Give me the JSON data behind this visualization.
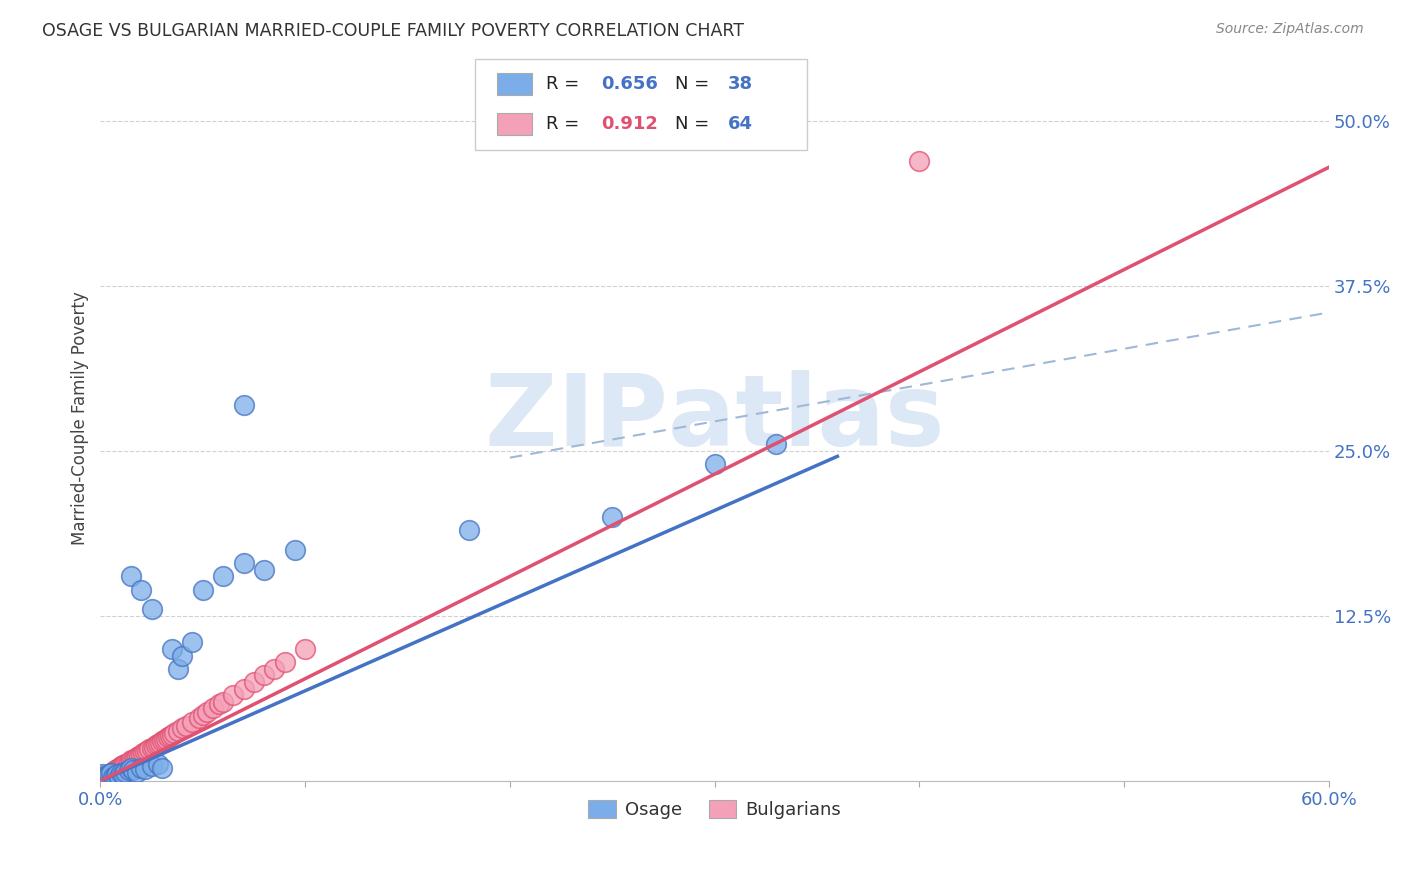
{
  "title": "OSAGE VS BULGARIAN MARRIED-COUPLE FAMILY POVERTY CORRELATION CHART",
  "source": "Source: ZipAtlas.com",
  "ylabel": "Married-Couple Family Poverty",
  "xlim": [
    0.0,
    0.6
  ],
  "ylim": [
    0.0,
    0.55
  ],
  "x_ticks": [
    0.0,
    0.6
  ],
  "x_tick_labels": [
    "0.0%",
    "60.0%"
  ],
  "y_ticks": [
    0.0,
    0.125,
    0.25,
    0.375,
    0.5
  ],
  "y_tick_labels": [
    "",
    "12.5%",
    "25.0%",
    "37.5%",
    "50.0%"
  ],
  "osage_color": "#7baee8",
  "bulgarian_color": "#f4a0b8",
  "osage_line_color": "#4472c4",
  "bulgarian_line_color": "#e05070",
  "dashed_line_color": "#a0b8d8",
  "background_color": "#ffffff",
  "grid_color": "#cccccc",
  "watermark_color": "#dce8f5",
  "tick_label_color": "#4472c4",
  "source_color": "#888888",
  "title_color": "#333333",
  "axis_label_color": "#444444",
  "osage_x": [
    0.001,
    0.002,
    0.003,
    0.004,
    0.005,
    0.006,
    0.007,
    0.008,
    0.009,
    0.01,
    0.011,
    0.012,
    0.014,
    0.015,
    0.016,
    0.018,
    0.02,
    0.022,
    0.025,
    0.028,
    0.03,
    0.035,
    0.038,
    0.04,
    0.045,
    0.05,
    0.06,
    0.07,
    0.08,
    0.095,
    0.18,
    0.25,
    0.3,
    0.33,
    0.015,
    0.02,
    0.025,
    0.07
  ],
  "osage_y": [
    0.005,
    0.004,
    0.003,
    0.005,
    0.006,
    0.003,
    0.004,
    0.005,
    0.003,
    0.006,
    0.005,
    0.007,
    0.008,
    0.01,
    0.008,
    0.007,
    0.01,
    0.009,
    0.011,
    0.013,
    0.01,
    0.1,
    0.085,
    0.095,
    0.105,
    0.145,
    0.155,
    0.165,
    0.16,
    0.175,
    0.19,
    0.2,
    0.24,
    0.255,
    0.155,
    0.145,
    0.13,
    0.285
  ],
  "bulg_x": [
    0.001,
    0.002,
    0.003,
    0.003,
    0.004,
    0.004,
    0.005,
    0.005,
    0.006,
    0.006,
    0.007,
    0.007,
    0.008,
    0.008,
    0.009,
    0.009,
    0.01,
    0.01,
    0.011,
    0.011,
    0.012,
    0.013,
    0.014,
    0.015,
    0.015,
    0.016,
    0.017,
    0.018,
    0.019,
    0.02,
    0.021,
    0.022,
    0.023,
    0.024,
    0.025,
    0.026,
    0.027,
    0.028,
    0.029,
    0.03,
    0.031,
    0.032,
    0.033,
    0.034,
    0.035,
    0.036,
    0.038,
    0.04,
    0.042,
    0.045,
    0.048,
    0.05,
    0.052,
    0.055,
    0.058,
    0.06,
    0.065,
    0.07,
    0.075,
    0.08,
    0.085,
    0.09,
    0.1,
    0.4
  ],
  "bulg_y": [
    0.001,
    0.002,
    0.003,
    0.004,
    0.004,
    0.005,
    0.005,
    0.006,
    0.006,
    0.007,
    0.007,
    0.008,
    0.008,
    0.009,
    0.009,
    0.01,
    0.01,
    0.011,
    0.011,
    0.012,
    0.013,
    0.013,
    0.014,
    0.015,
    0.016,
    0.016,
    0.017,
    0.018,
    0.019,
    0.02,
    0.021,
    0.022,
    0.023,
    0.024,
    0.025,
    0.026,
    0.027,
    0.028,
    0.029,
    0.03,
    0.031,
    0.032,
    0.033,
    0.034,
    0.035,
    0.036,
    0.038,
    0.04,
    0.042,
    0.045,
    0.048,
    0.05,
    0.052,
    0.055,
    0.058,
    0.06,
    0.065,
    0.07,
    0.075,
    0.08,
    0.085,
    0.09,
    0.1,
    0.47
  ],
  "osage_line": [
    0.0,
    0.36,
    0.0,
    0.246
  ],
  "bulg_line": [
    0.0,
    0.6,
    0.0,
    0.465
  ],
  "dashed_line": [
    0.2,
    0.6,
    0.245,
    0.355
  ]
}
